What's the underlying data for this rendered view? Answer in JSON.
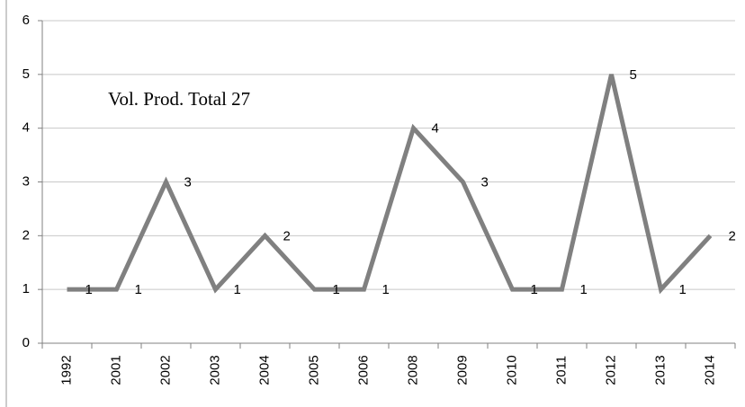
{
  "chart_data": {
    "type": "line",
    "annotation": "Vol. Prod. Total 27",
    "categories": [
      "1992",
      "2001",
      "2002",
      "2003",
      "2004",
      "2005",
      "2006",
      "2008",
      "2009",
      "2010",
      "2011",
      "2012",
      "2013",
      "2014"
    ],
    "values": [
      1,
      1,
      3,
      1,
      2,
      1,
      1,
      4,
      3,
      1,
      1,
      5,
      1,
      2
    ],
    "color": "#808080",
    "ylim": [
      0,
      6
    ],
    "yticks": [
      0,
      1,
      2,
      3,
      4,
      5,
      6
    ],
    "grid": true
  }
}
